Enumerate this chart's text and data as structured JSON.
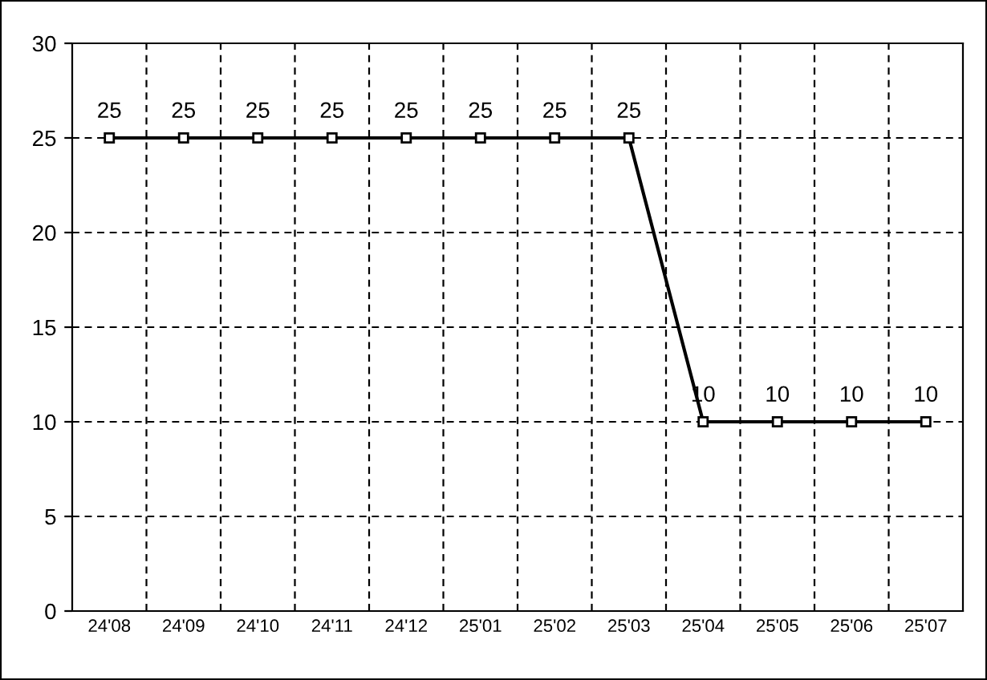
{
  "chart_data": {
    "type": "line",
    "categories": [
      "24'08",
      "24'09",
      "24'10",
      "24'11",
      "24'12",
      "25'01",
      "25'02",
      "25'03",
      "25'04",
      "25'05",
      "25'06",
      "25'07"
    ],
    "series": [
      {
        "color": "#000000",
        "values": [
          25,
          25,
          25,
          25,
          25,
          25,
          25,
          25,
          10,
          10,
          10,
          10
        ]
      }
    ],
    "ylim": [
      0,
      30
    ],
    "yticks": [
      0,
      5,
      10,
      15,
      20,
      25,
      30
    ],
    "grid": true,
    "marker": "square",
    "line_style": "solid",
    "data_labels": true,
    "legend": false
  }
}
